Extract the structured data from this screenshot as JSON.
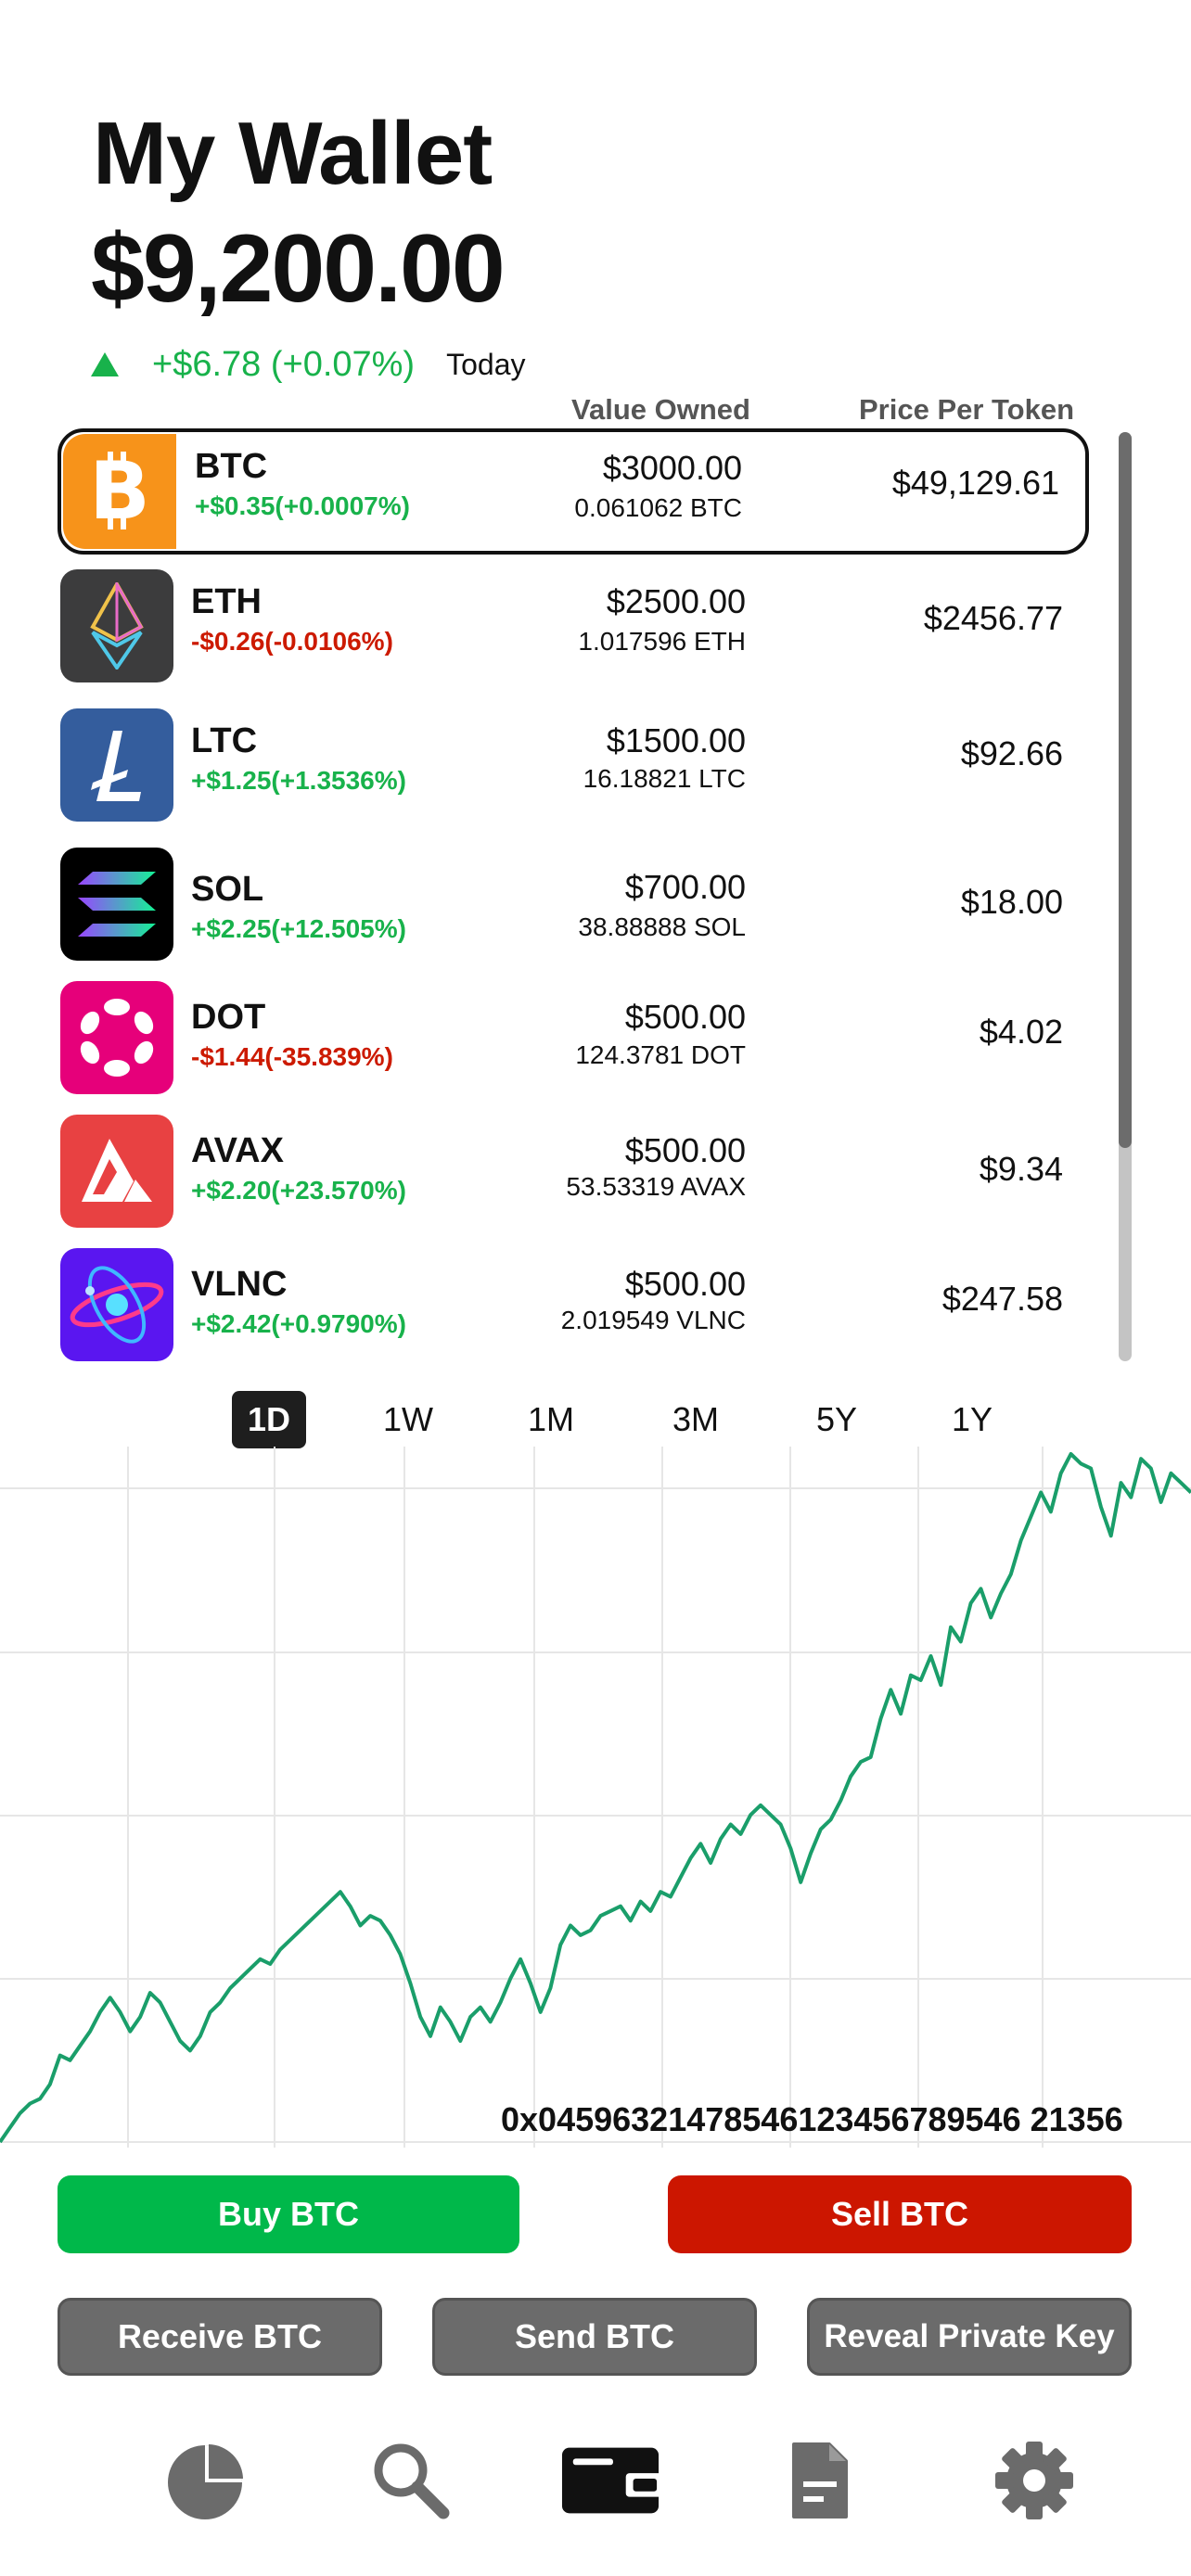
{
  "header": {
    "title": "My Wallet",
    "balance": "$9,200.00",
    "change": "+$6.78 (+0.07%)",
    "period": "Today"
  },
  "table": {
    "value_header": "Value Owned",
    "price_header": "Price Per Token"
  },
  "assets": [
    {
      "symbol": "BTC",
      "change": "+$0.35(+0.0007%)",
      "direction": "up",
      "value": "$3000.00",
      "quantity": "0.061062 BTC",
      "price": "$49,129.61",
      "selected": true,
      "logo_color": "#f7931a",
      "icon": "bitcoin-icon"
    },
    {
      "symbol": "ETH",
      "change": "-$0.26(-0.0106%)",
      "direction": "down",
      "value": "$2500.00",
      "quantity": "1.017596 ETH",
      "price": "$2456.77",
      "selected": false,
      "logo_color": "#3c3c3d",
      "icon": "ethereum-icon"
    },
    {
      "symbol": "LTC",
      "change": "+$1.25(+1.3536%)",
      "direction": "up",
      "value": "$1500.00",
      "quantity": "16.18821 LTC",
      "price": "$92.66",
      "selected": false,
      "logo_color": "#345d9d",
      "icon": "litecoin-icon"
    },
    {
      "symbol": "SOL",
      "change": "+$2.25(+12.505%)",
      "direction": "up",
      "value": "$700.00",
      "quantity": "38.88888 SOL",
      "price": "$18.00",
      "selected": false,
      "logo_color": "#000000",
      "icon": "solana-icon"
    },
    {
      "symbol": "DOT",
      "change": "-$1.44(-35.839%)",
      "direction": "down",
      "value": "$500.00",
      "quantity": "124.3781 DOT",
      "price": "$4.02",
      "selected": false,
      "logo_color": "#e6007a",
      "icon": "polkadot-icon"
    },
    {
      "symbol": "AVAX",
      "change": "+$2.20(+23.570%)",
      "direction": "up",
      "value": "$500.00",
      "quantity": "53.53319 AVAX",
      "price": "$9.34",
      "selected": false,
      "logo_color": "#e84142",
      "icon": "avalanche-icon"
    },
    {
      "symbol": "VLNC",
      "change": "+$2.42(+0.9790%)",
      "direction": "up",
      "value": "$500.00",
      "quantity": "2.019549 VLNC",
      "price": "$247.58",
      "selected": false,
      "logo_color": "#5a16f0",
      "icon": "atom-icon"
    }
  ],
  "range_tabs": [
    "1D",
    "1W",
    "1M",
    "3M",
    "5Y",
    "1Y"
  ],
  "active_range": "1D",
  "colors": {
    "positive": "#18b24b",
    "negative": "#cc1a00",
    "chart_line": "#1a9e6a",
    "buy": "#00b84a",
    "sell": "#cc1600",
    "secondary_button": "#6b6b6b"
  },
  "chart_data": {
    "type": "line",
    "series": [
      {
        "values": [
          0,
          3,
          6,
          8,
          9,
          12,
          18,
          17,
          20,
          23,
          27,
          30,
          27,
          23,
          26,
          31,
          29,
          25,
          21,
          19,
          22,
          27,
          29,
          32,
          34,
          36,
          38,
          37,
          40,
          42,
          44,
          46,
          48,
          50,
          52,
          49,
          45,
          47,
          46,
          43,
          39,
          33,
          26,
          22,
          28,
          25,
          21,
          26,
          28,
          25,
          29,
          34,
          38,
          33,
          27,
          32,
          41,
          45,
          43,
          44,
          47,
          48,
          49,
          46,
          50,
          48,
          52,
          51,
          55,
          59,
          62,
          58,
          63,
          66,
          64,
          68,
          70,
          68,
          66,
          61,
          54,
          60,
          65,
          67,
          71,
          76,
          79,
          80,
          88,
          94,
          89,
          97,
          96,
          101,
          95,
          107,
          104,
          112,
          115,
          109,
          114,
          118,
          125,
          130,
          135,
          131,
          139,
          143,
          141,
          140,
          132,
          126,
          137,
          134,
          142,
          140,
          133,
          139,
          137,
          135
        ]
      }
    ],
    "grid": true,
    "legend": "none"
  },
  "wallet_address": "0x04596321478546123456789546 21356",
  "actions": {
    "buy": "Buy BTC",
    "sell": "Sell BTC",
    "receive": "Receive BTC",
    "send": "Send BTC",
    "reveal": "Reveal Private Key"
  },
  "nav": [
    {
      "icon": "pie-chart-icon",
      "active": false
    },
    {
      "icon": "search-icon",
      "active": false
    },
    {
      "icon": "wallet-icon",
      "active": true
    },
    {
      "icon": "document-icon",
      "active": false
    },
    {
      "icon": "gear-icon",
      "active": false
    }
  ]
}
